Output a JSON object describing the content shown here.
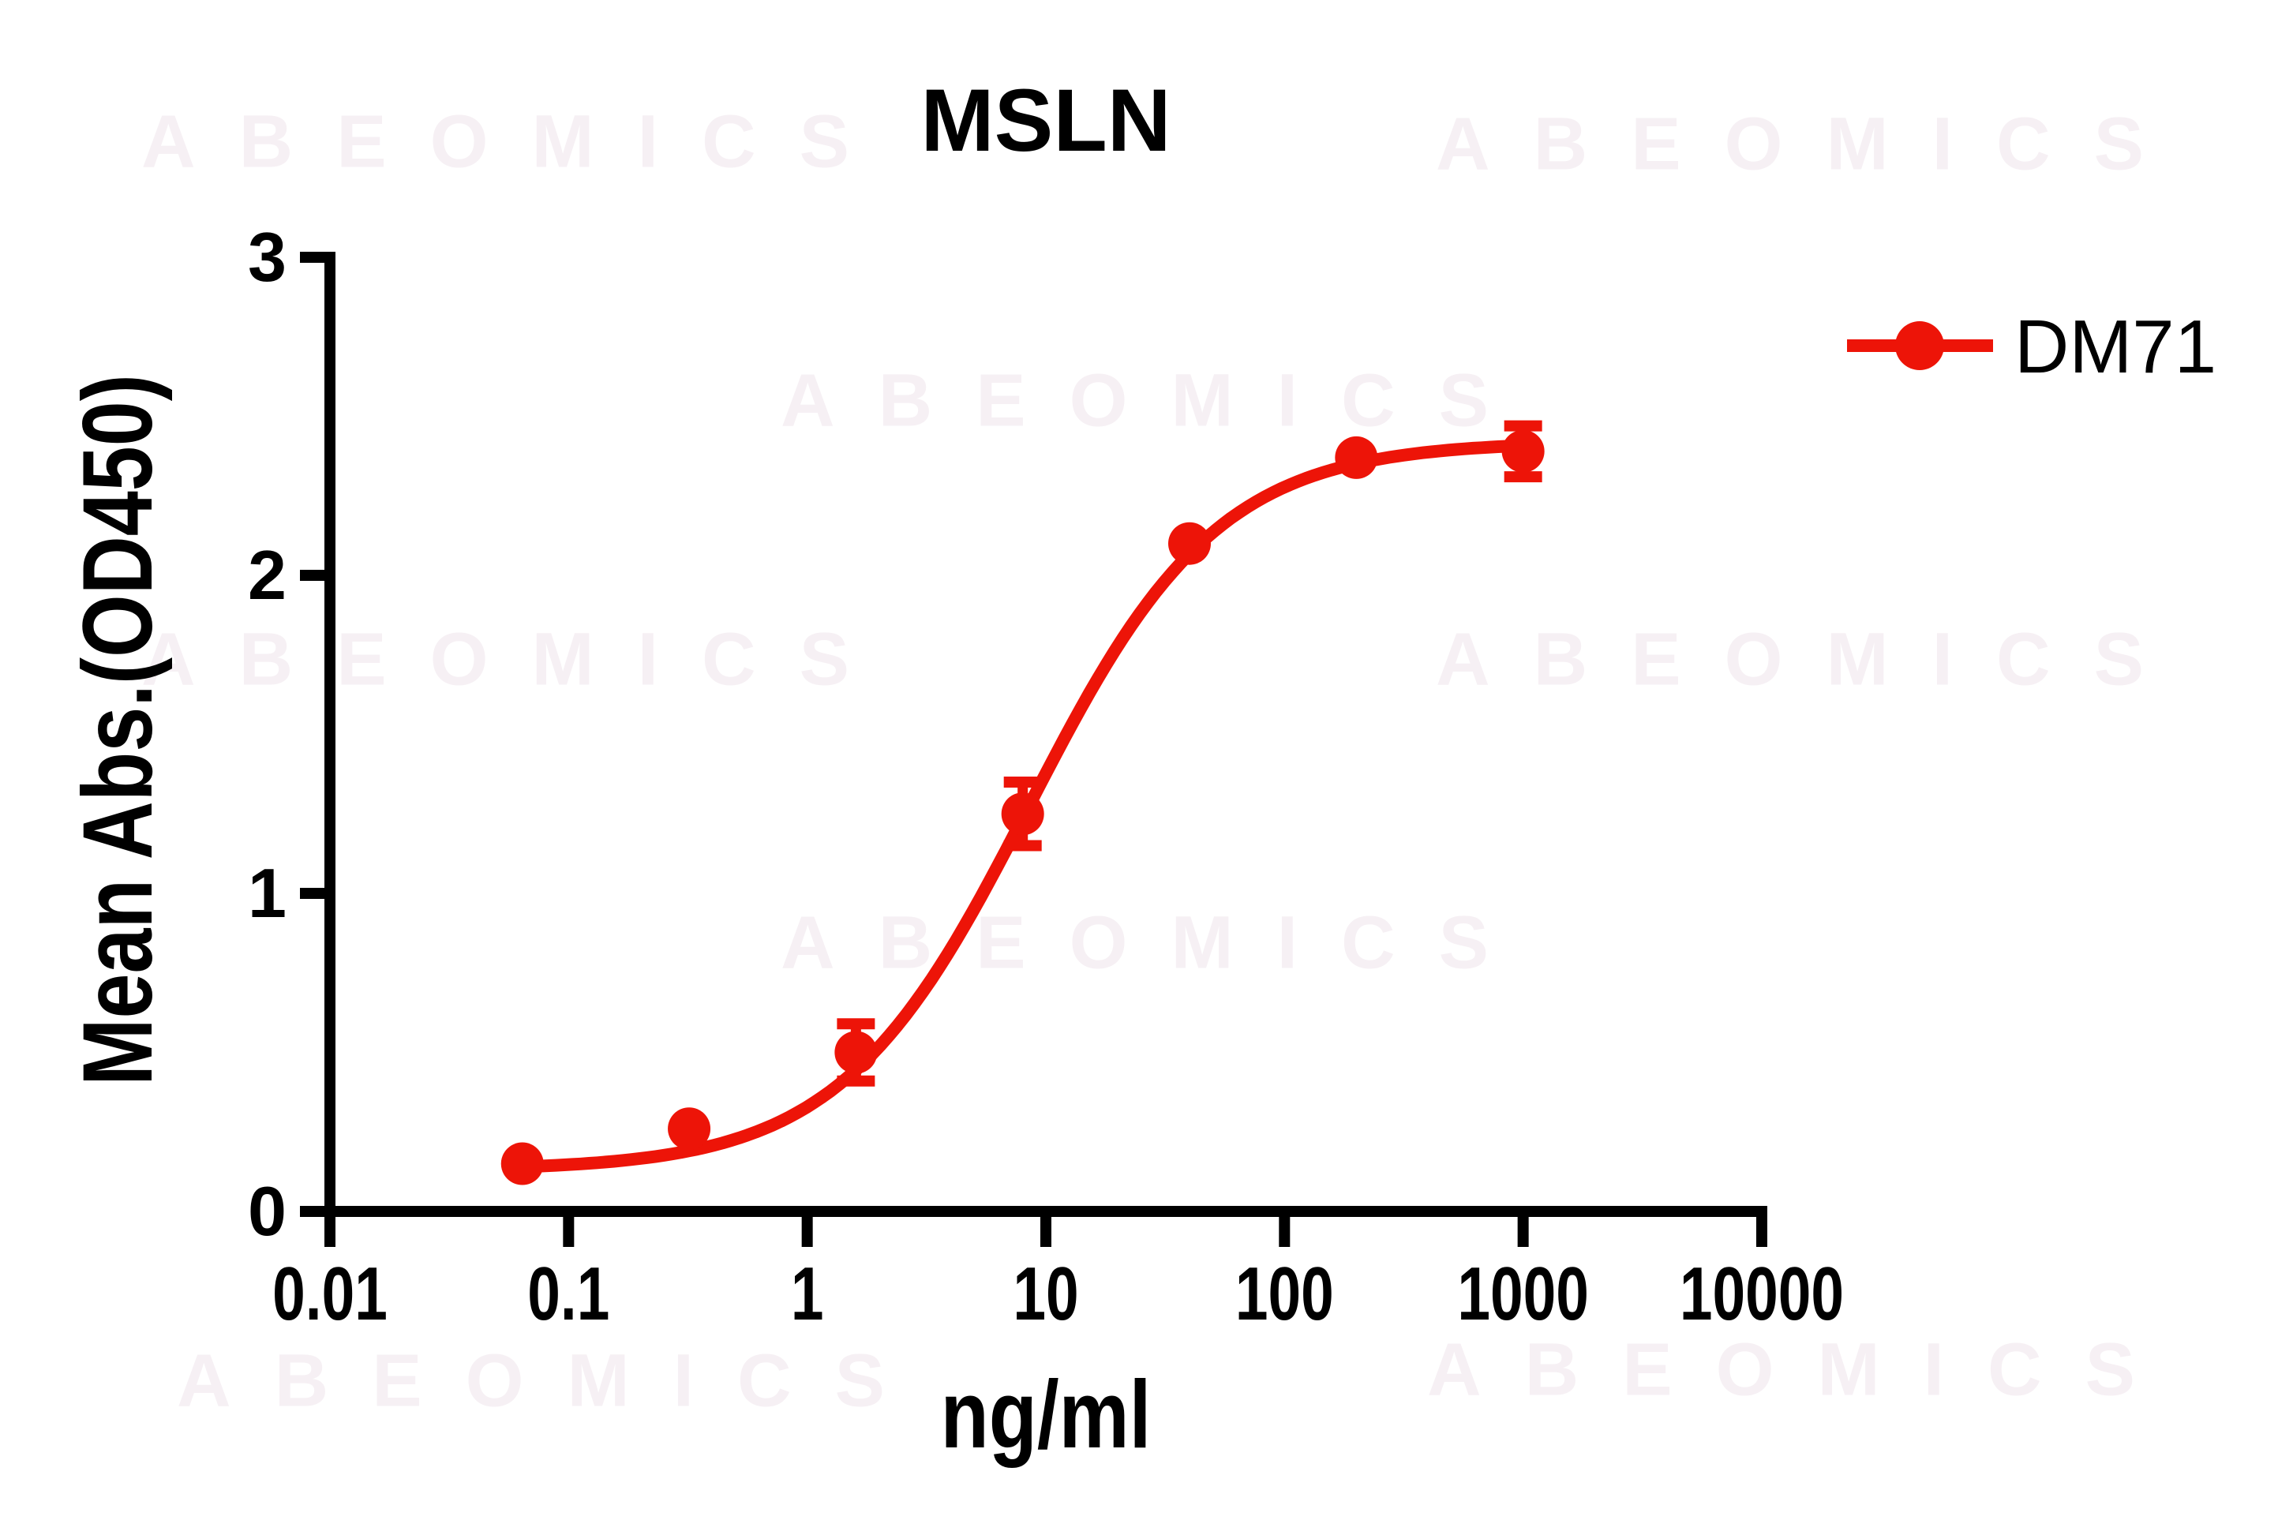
{
  "title": "MSLN",
  "watermark": {
    "text": "ABEOMICS",
    "color": "#f6f0f4"
  },
  "legend": {
    "label": "DM71"
  },
  "chart_data": {
    "type": "line",
    "title": "MSLN",
    "xlabel": "ng/ml",
    "ylabel": "Mean Abs.(OD450)",
    "x_scale": "log10",
    "xlim": [
      0.01,
      10000
    ],
    "ylim": [
      0,
      3
    ],
    "x_ticks": [
      0.01,
      0.1,
      1,
      10,
      100,
      1000,
      10000
    ],
    "x_tick_labels": [
      "0.01",
      "0.1",
      "1",
      "10",
      "100",
      "1000",
      "10000"
    ],
    "y_ticks": [
      0,
      1,
      2,
      3
    ],
    "y_tick_labels": [
      "0",
      "1",
      "2",
      "3"
    ],
    "grid": false,
    "legend_position": "outside-upper-right",
    "axis_color": "#000000",
    "series": [
      {
        "name": "DM71",
        "color": "#ed1408",
        "marker": "circle",
        "x": [
          0.064,
          0.32,
          1.6,
          8,
          40,
          200,
          1000
        ],
        "y": [
          0.15,
          0.26,
          0.5,
          1.25,
          2.1,
          2.37,
          2.39
        ],
        "y_err": [
          0,
          0,
          0.09,
          0.1,
          0,
          0,
          0.08
        ],
        "fit": {
          "model": "4PL",
          "bottom": 0.13,
          "top": 2.42,
          "ec50": 8.5,
          "hill": 1.1
        }
      }
    ]
  }
}
